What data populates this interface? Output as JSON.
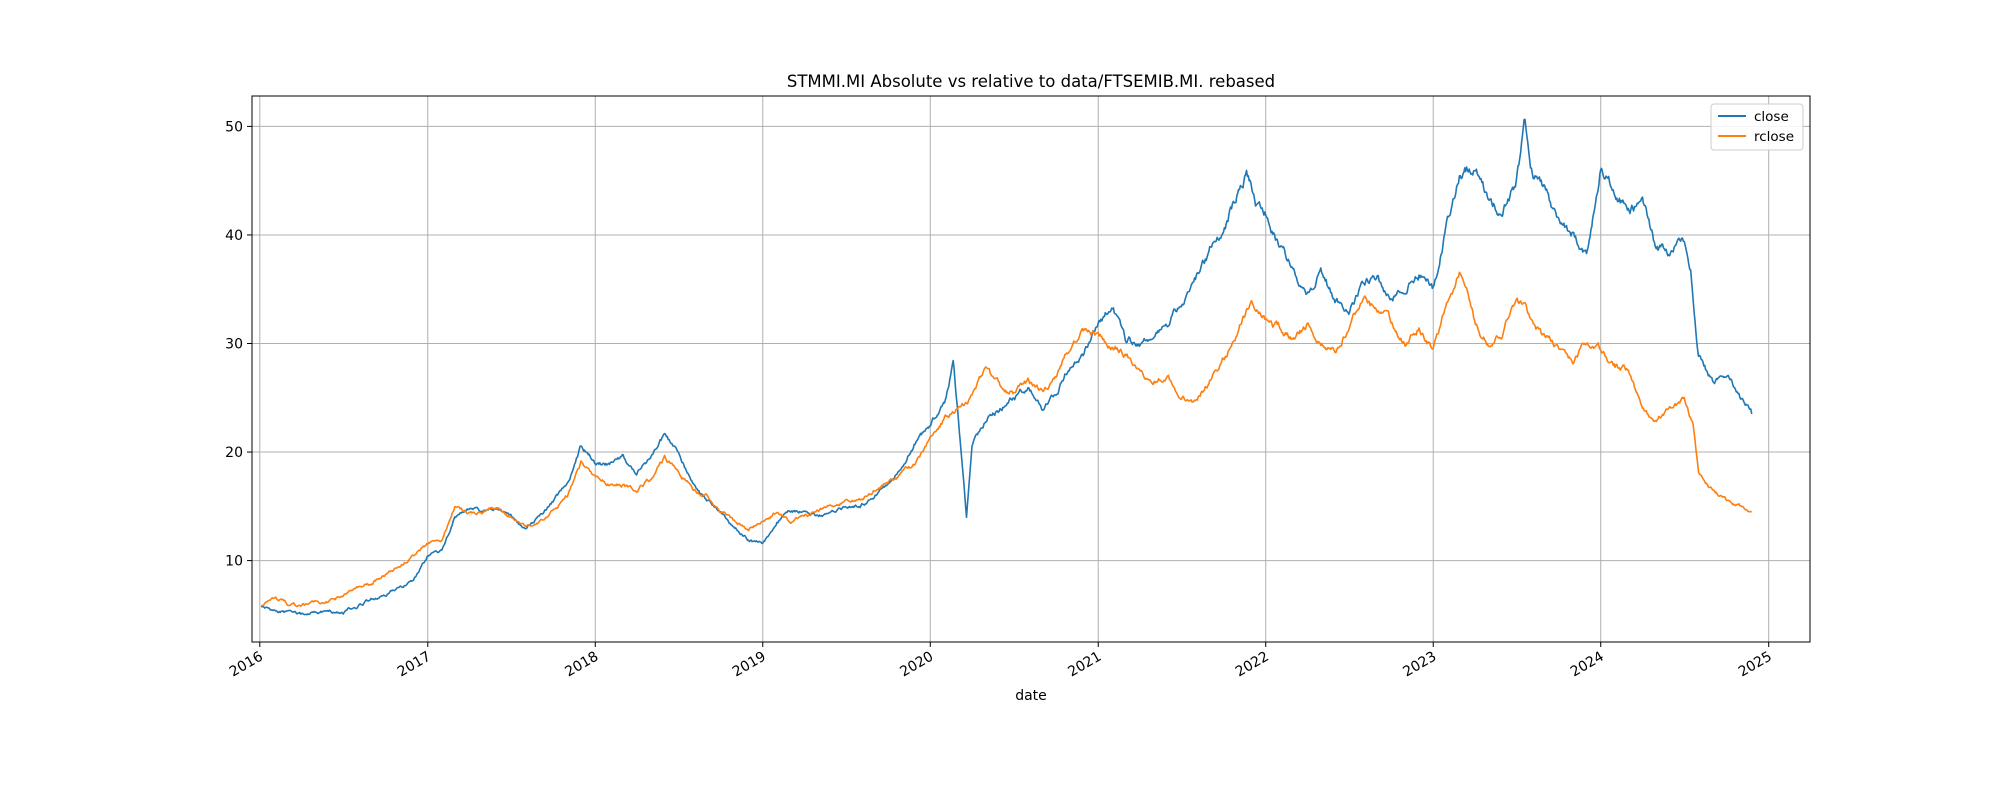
{
  "chart_data": {
    "type": "line",
    "title": "STMMI.MI Absolute vs relative to data/FTSEMIB.MI. rebased",
    "xlabel": "date",
    "ylabel": "",
    "x_ticks": [
      "2016",
      "2017",
      "2018",
      "2019",
      "2020",
      "2021",
      "2022",
      "2023",
      "2024",
      "2025"
    ],
    "y_ticks": [
      10,
      20,
      30,
      40,
      50
    ],
    "xlim": [
      "2015-12-15",
      "2025-04-01"
    ],
    "ylim": [
      2.5,
      52.8
    ],
    "grid": true,
    "legend_position": "top-right",
    "colors": {
      "close": "#1f77b4",
      "rclose": "#ff7f0e"
    },
    "series": [
      {
        "name": "close",
        "x": [
          "2016-01-04",
          "2016-02-01",
          "2016-03-01",
          "2016-04-01",
          "2016-05-01",
          "2016-06-01",
          "2016-07-01",
          "2016-08-01",
          "2016-09-01",
          "2016-10-01",
          "2016-11-01",
          "2016-12-01",
          "2017-01-01",
          "2017-02-01",
          "2017-03-01",
          "2017-04-01",
          "2017-05-01",
          "2017-06-01",
          "2017-07-01",
          "2017-08-01",
          "2017-09-01",
          "2017-10-01",
          "2017-11-01",
          "2017-12-01",
          "2018-01-01",
          "2018-02-01",
          "2018-03-01",
          "2018-04-01",
          "2018-05-01",
          "2018-06-01",
          "2018-07-01",
          "2018-08-01",
          "2018-09-01",
          "2018-10-01",
          "2018-11-01",
          "2018-12-01",
          "2019-01-01",
          "2019-02-01",
          "2019-03-01",
          "2019-04-01",
          "2019-05-01",
          "2019-06-01",
          "2019-07-01",
          "2019-08-01",
          "2019-09-01",
          "2019-10-01",
          "2019-11-01",
          "2019-12-01",
          "2020-01-01",
          "2020-02-01",
          "2020-02-20",
          "2020-03-20",
          "2020-04-01",
          "2020-05-01",
          "2020-06-01",
          "2020-07-01",
          "2020-08-01",
          "2020-09-01",
          "2020-10-01",
          "2020-11-01",
          "2020-12-01",
          "2021-01-01",
          "2021-02-01",
          "2021-03-01",
          "2021-04-01",
          "2021-05-01",
          "2021-06-01",
          "2021-07-01",
          "2021-08-01",
          "2021-09-01",
          "2021-10-01",
          "2021-11-01",
          "2021-11-20",
          "2021-12-10",
          "2022-01-01",
          "2022-02-01",
          "2022-03-01",
          "2022-04-01",
          "2022-05-01",
          "2022-06-01",
          "2022-07-01",
          "2022-08-01",
          "2022-09-01",
          "2022-10-01",
          "2022-11-01",
          "2022-12-01",
          "2023-01-01",
          "2023-02-01",
          "2023-03-01",
          "2023-04-01",
          "2023-05-01",
          "2023-06-01",
          "2023-07-01",
          "2023-07-20",
          "2023-08-01",
          "2023-09-01",
          "2023-10-01",
          "2023-11-01",
          "2023-12-01",
          "2024-01-01",
          "2024-02-01",
          "2024-03-01",
          "2024-04-01",
          "2024-05-01",
          "2024-06-01",
          "2024-07-01",
          "2024-07-15",
          "2024-08-01",
          "2024-09-01",
          "2024-10-01",
          "2024-11-01",
          "2024-11-25"
        ],
        "values": [
          5.8,
          5.4,
          5.2,
          5.0,
          5.2,
          5.3,
          5.3,
          5.8,
          6.5,
          7.0,
          7.4,
          8.0,
          10.5,
          11.0,
          14.0,
          14.8,
          14.5,
          14.8,
          14.2,
          13.0,
          14.0,
          15.5,
          17.0,
          20.5,
          19.0,
          18.8,
          19.5,
          18.0,
          19.5,
          21.5,
          20.0,
          17.0,
          15.5,
          14.5,
          13.0,
          12.0,
          11.5,
          13.5,
          14.5,
          14.5,
          14.0,
          14.5,
          15.0,
          15.0,
          16.0,
          17.0,
          18.5,
          21.0,
          22.5,
          24.5,
          28.5,
          14.0,
          21.0,
          23.0,
          24.0,
          25.0,
          26.0,
          24.0,
          25.5,
          28.0,
          29.0,
          32.0,
          33.5,
          30.5,
          30.0,
          30.5,
          32.0,
          33.5,
          36.0,
          38.5,
          40.0,
          44.0,
          45.5,
          43.0,
          42.0,
          38.5,
          37.0,
          34.5,
          36.5,
          34.0,
          33.0,
          35.5,
          36.0,
          34.0,
          35.5,
          36.5,
          35.0,
          41.0,
          45.5,
          46.5,
          43.0,
          42.0,
          45.0,
          50.0,
          46.0,
          44.0,
          41.0,
          40.0,
          38.0,
          46.0,
          44.0,
          42.0,
          43.0,
          38.5,
          38.5,
          39.5,
          37.0,
          29.0,
          26.5,
          27.0,
          25.0,
          23.5
        ]
      },
      {
        "name": "rclose",
        "x": [
          "2016-01-04",
          "2016-02-01",
          "2016-03-01",
          "2016-04-01",
          "2016-05-01",
          "2016-06-01",
          "2016-07-01",
          "2016-08-01",
          "2016-09-01",
          "2016-10-01",
          "2016-11-01",
          "2016-12-01",
          "2017-01-01",
          "2017-02-01",
          "2017-03-01",
          "2017-04-01",
          "2017-05-01",
          "2017-06-01",
          "2017-07-01",
          "2017-08-01",
          "2017-09-01",
          "2017-10-01",
          "2017-11-01",
          "2017-12-01",
          "2018-01-01",
          "2018-02-01",
          "2018-03-01",
          "2018-04-01",
          "2018-05-01",
          "2018-06-01",
          "2018-07-01",
          "2018-08-01",
          "2018-09-01",
          "2018-10-01",
          "2018-11-01",
          "2018-12-01",
          "2019-01-01",
          "2019-02-01",
          "2019-03-01",
          "2019-04-01",
          "2019-05-01",
          "2019-06-01",
          "2019-07-01",
          "2019-08-01",
          "2019-09-01",
          "2019-10-01",
          "2019-11-01",
          "2019-12-01",
          "2020-01-01",
          "2020-02-01",
          "2020-03-01",
          "2020-04-01",
          "2020-05-01",
          "2020-06-01",
          "2020-07-01",
          "2020-08-01",
          "2020-09-01",
          "2020-10-01",
          "2020-11-01",
          "2020-12-01",
          "2021-01-01",
          "2021-02-01",
          "2021-03-01",
          "2021-04-01",
          "2021-05-01",
          "2021-06-01",
          "2021-07-01",
          "2021-08-01",
          "2021-09-01",
          "2021-10-01",
          "2021-11-01",
          "2021-12-01",
          "2022-01-01",
          "2022-02-01",
          "2022-03-01",
          "2022-04-01",
          "2022-05-01",
          "2022-06-01",
          "2022-07-01",
          "2022-08-01",
          "2022-09-01",
          "2022-10-01",
          "2022-11-01",
          "2022-12-01",
          "2023-01-01",
          "2023-02-01",
          "2023-03-01",
          "2023-04-01",
          "2023-05-01",
          "2023-06-01",
          "2023-07-01",
          "2023-08-01",
          "2023-09-01",
          "2023-10-01",
          "2023-11-01",
          "2023-12-01",
          "2024-01-01",
          "2024-02-01",
          "2024-03-01",
          "2024-04-01",
          "2024-05-01",
          "2024-06-01",
          "2024-07-01",
          "2024-07-20",
          "2024-08-01",
          "2024-09-01",
          "2024-10-01",
          "2024-11-01",
          "2024-11-25"
        ],
        "values": [
          6.0,
          6.5,
          6.0,
          5.8,
          6.0,
          6.3,
          6.8,
          7.5,
          8.0,
          8.8,
          9.5,
          10.5,
          11.5,
          12.0,
          15.0,
          14.5,
          14.5,
          14.8,
          14.0,
          13.0,
          13.5,
          14.5,
          16.0,
          19.0,
          17.5,
          17.0,
          17.0,
          16.5,
          17.5,
          19.5,
          18.5,
          16.5,
          16.0,
          14.5,
          13.5,
          13.0,
          13.5,
          14.5,
          13.5,
          14.0,
          14.5,
          15.0,
          15.5,
          15.5,
          16.5,
          17.0,
          18.0,
          19.0,
          21.0,
          23.0,
          24.0,
          25.0,
          27.5,
          26.0,
          25.5,
          26.5,
          25.5,
          27.0,
          29.5,
          31.0,
          30.5,
          30.0,
          29.0,
          27.5,
          26.5,
          27.0,
          25.0,
          24.5,
          26.5,
          28.5,
          31.0,
          34.0,
          32.5,
          31.5,
          30.5,
          31.5,
          30.0,
          29.0,
          31.5,
          34.0,
          33.0,
          32.0,
          30.0,
          31.5,
          29.5,
          34.0,
          36.5,
          32.0,
          30.0,
          31.0,
          34.0,
          32.5,
          30.5,
          29.5,
          28.0,
          30.0,
          29.5,
          28.0,
          27.5,
          24.0,
          23.0,
          24.0,
          25.0,
          22.5,
          18.0,
          16.5,
          15.5,
          15.0,
          14.5
        ]
      }
    ]
  }
}
